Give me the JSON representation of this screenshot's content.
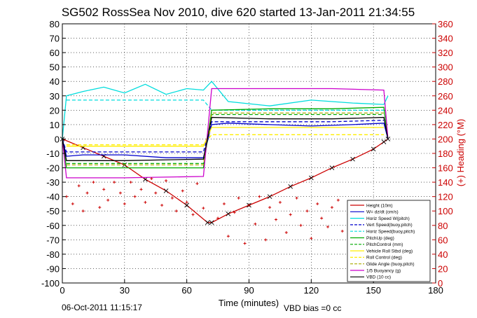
{
  "chart_data": {
    "type": "line",
    "title": "SG502 RossSea Nov 2010, dive 620 started 13-Jan-2011 21:34:55",
    "xlabel": "Time (minutes)",
    "ylabel_right": "(+) Heading (°M)",
    "xlim": [
      0,
      180
    ],
    "ylim": [
      -100,
      80
    ],
    "ylim_right": [
      0,
      360
    ],
    "x_ticks": [
      "0",
      "30",
      "60",
      "90",
      "120",
      "150",
      "180"
    ],
    "y_ticks": [
      "80",
      "70",
      "60",
      "50",
      "40",
      "30",
      "20",
      "10",
      "0",
      "-10",
      "-20",
      "-30",
      "-40",
      "-50",
      "-60",
      "-70",
      "-80",
      "-90",
      "-100"
    ],
    "y_ticks_right": [
      "360",
      "340",
      "320",
      "300",
      "280",
      "260",
      "240",
      "220",
      "200",
      "180",
      "160",
      "140",
      "120",
      "100",
      "80",
      "60",
      "40",
      "20",
      "0"
    ],
    "grid": true,
    "legend_position": "bottom-right",
    "series": [
      {
        "name": "Height (10m)",
        "color": "#cc0000",
        "style": "solid",
        "marker": "x",
        "x": [
          0,
          10,
          20,
          30,
          40,
          50,
          60,
          70,
          72,
          80,
          90,
          100,
          110,
          120,
          130,
          140,
          150,
          155,
          157
        ],
        "y": [
          0,
          -6,
          -12,
          -18,
          -28,
          -36,
          -46,
          -58,
          -58,
          -52,
          -46,
          -40,
          -33,
          -27,
          -20,
          -14,
          -7,
          -2,
          0
        ]
      },
      {
        "name": "W= dz/dt (cm/s)",
        "color": "#0000cc",
        "style": "solid",
        "x": [
          0,
          2,
          10,
          30,
          50,
          68,
          72,
          80,
          100,
          120,
          140,
          155,
          157
        ],
        "y": [
          0,
          -12,
          -11,
          -11,
          -13,
          -13,
          10,
          11,
          10,
          9,
          10,
          11,
          0
        ]
      },
      {
        "name": "Horiz Speed W(pitch)",
        "color": "#00dddd",
        "style": "solid",
        "x": [
          0,
          2,
          10,
          20,
          30,
          40,
          50,
          60,
          68,
          72,
          80,
          100,
          120,
          140,
          155,
          157
        ],
        "y": [
          0,
          30,
          33,
          36,
          32,
          38,
          31,
          35,
          34,
          40,
          26,
          23,
          27,
          25,
          24,
          30
        ]
      },
      {
        "name": "Vert Speed(buoy,pitch)",
        "color": "#0000cc",
        "style": "dashed",
        "x": [
          0,
          2,
          30,
          68,
          72,
          100,
          130,
          155
        ],
        "y": [
          0,
          -9,
          -9,
          -9,
          12,
          12,
          12,
          13
        ]
      },
      {
        "name": "Horiz Speed(buoy,pitch)",
        "color": "#00dddd",
        "style": "dashed",
        "x": [
          2,
          30,
          68,
          72,
          100,
          130,
          155
        ],
        "y": [
          27,
          27,
          27,
          20,
          20,
          20,
          20
        ]
      },
      {
        "name": "PitchUp (deg)",
        "color": "#00aa00",
        "style": "solid",
        "x": [
          0,
          2,
          30,
          68,
          72,
          100,
          130,
          155,
          157
        ],
        "y": [
          0,
          -20,
          -20,
          -20,
          20,
          21,
          21,
          22,
          0
        ]
      },
      {
        "name": "PitchControl (mm)",
        "color": "#00aa00",
        "style": "dashed",
        "x": [
          2,
          30,
          68,
          72,
          100,
          130,
          155
        ],
        "y": [
          -17,
          -17,
          -17,
          17,
          17,
          17,
          17
        ]
      },
      {
        "name": "Vehicle Roll Stbd (deg)",
        "color": "#ffee00",
        "style": "solid",
        "x": [
          2,
          30,
          68,
          72,
          100,
          130,
          155
        ],
        "y": [
          -5,
          -5,
          -5,
          8,
          8,
          8,
          8
        ]
      },
      {
        "name": "Roll Control (deg)",
        "color": "#ffee00",
        "style": "dashed",
        "x": [
          2,
          30,
          68,
          72,
          100,
          130,
          155
        ],
        "y": [
          -4,
          -4,
          -4,
          3,
          3,
          3,
          3
        ]
      },
      {
        "name": "Glide Angle (buoy,pitch)",
        "color": "#aaaa00",
        "style": "dashed",
        "x": [
          2,
          30,
          68,
          72,
          100,
          130,
          155
        ],
        "y": [
          -18,
          -18,
          -18,
          18,
          18,
          18,
          18
        ]
      },
      {
        "name": "1/5 Buoyancy (g)",
        "color": "#cc00cc",
        "style": "solid",
        "x": [
          0,
          2,
          30,
          68,
          72,
          100,
          130,
          155,
          157
        ],
        "y": [
          0,
          -27,
          -27,
          -26,
          35,
          35,
          35,
          34,
          0
        ]
      },
      {
        "name": "VBD (10 cc)",
        "color": "#000000",
        "style": "solid",
        "x": [
          0,
          2,
          30,
          68,
          72,
          100,
          130,
          155,
          157
        ],
        "y": [
          0,
          -15,
          -15,
          -14,
          15,
          14,
          14,
          15,
          0
        ]
      },
      {
        "name": "",
        "color": "#cc0000",
        "style": "markers-plus",
        "axis": "right",
        "x": [
          2,
          5,
          8,
          10,
          12,
          15,
          18,
          20,
          22,
          25,
          28,
          30,
          33,
          35,
          38,
          40,
          43,
          45,
          48,
          50,
          53,
          55,
          58,
          60,
          63,
          65,
          68,
          75,
          78,
          80,
          83,
          85,
          88,
          90,
          93,
          95,
          98,
          100,
          103,
          105,
          108,
          110,
          113,
          115,
          118,
          120,
          123,
          125,
          128,
          130,
          133,
          135,
          138,
          140,
          143,
          145,
          148,
          150,
          153
        ],
        "y": [
          120,
          110,
          135,
          100,
          125,
          140,
          105,
          130,
          115,
          140,
          125,
          110,
          140,
          120,
          130,
          112,
          145,
          125,
          108,
          142,
          118,
          100,
          128,
          112,
          95,
          138,
          104,
          90,
          110,
          65,
          98,
          118,
          55,
          108,
          82,
          120,
          60,
          105,
          88,
          112,
          70,
          95,
          118,
          80,
          100,
          62,
          110,
          90,
          78,
          105,
          115,
          72,
          95,
          110,
          85,
          100,
          105,
          92,
          100
        ]
      }
    ],
    "legend_entries": [
      "Height (10m)",
      "W= dz/dt (cm/s)",
      "Horiz Speed W(pitch)",
      "Vert Speed(buoy,pitch)",
      "Horiz Speed(buoy,pitch)",
      "PitchUp (deg)",
      "PitchControl (mm)",
      "Vehicle Roll Stbd (deg)",
      "Roll Control (deg)",
      "Glide Angle (buoy,pitch)",
      "1/5 Buoyancy (g)",
      "VBD (10 cc)"
    ]
  },
  "footer": {
    "timestamp": "06-Oct-2011 11:15:17",
    "vbd_bias": "VBD bias =0 cc"
  },
  "colors": {
    "axis": "#000000",
    "right_axis": "#cc0000",
    "grid": "#000000"
  }
}
